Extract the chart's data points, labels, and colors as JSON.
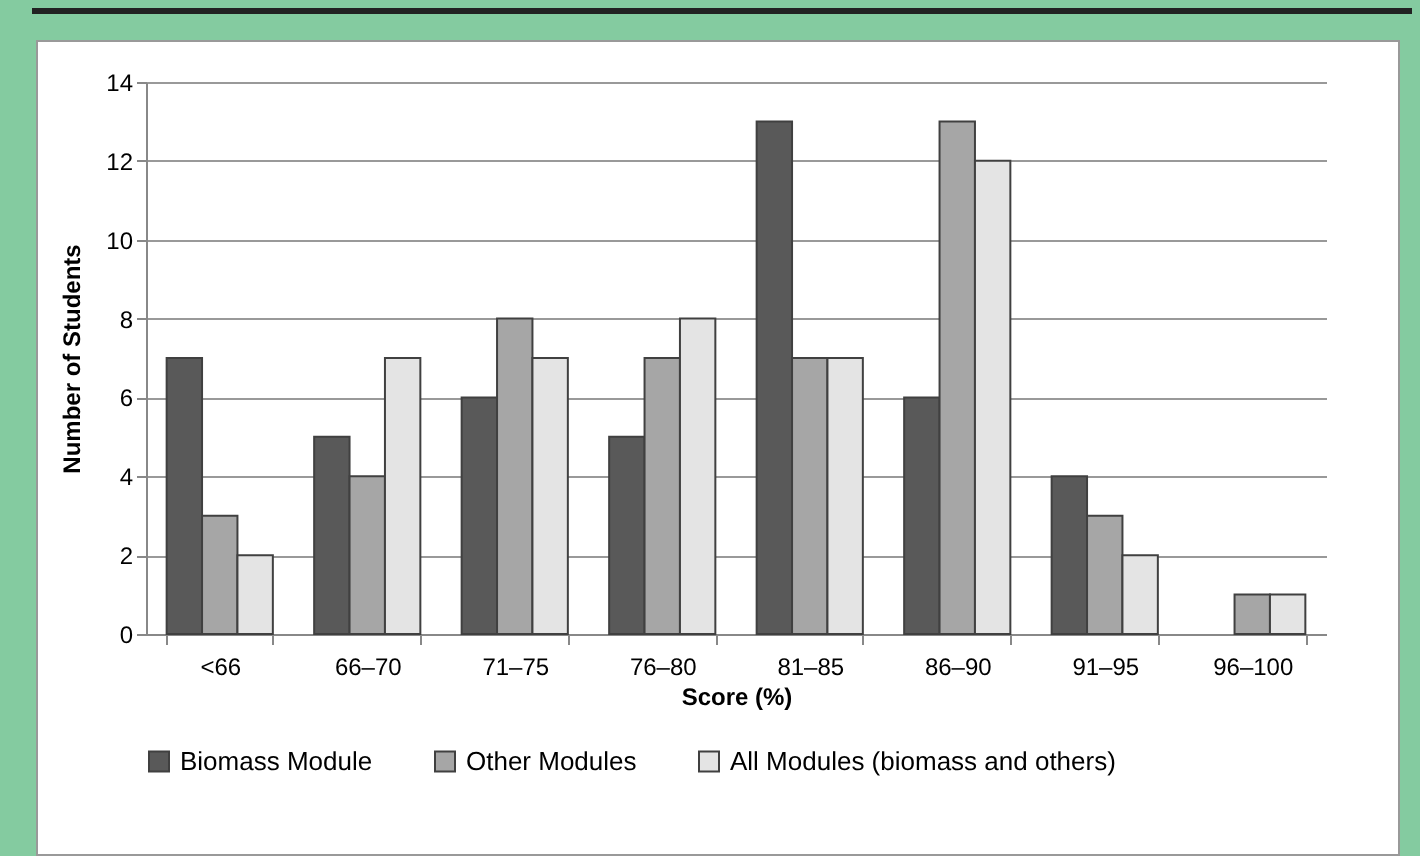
{
  "chart_data": {
    "type": "bar",
    "xlabel": "Score (%)",
    "ylabel": "Number of Students",
    "categories": [
      "<66",
      "66–70",
      "71–75",
      "76–80",
      "81–85",
      "86–90",
      "91–95",
      "96–100"
    ],
    "series": [
      {
        "name": "Biomass Module",
        "color": "#595959",
        "values": [
          7,
          5,
          6,
          5,
          13,
          6,
          4,
          null
        ]
      },
      {
        "name": "Other Modules",
        "color": "#a6a6a6",
        "values": [
          3,
          4,
          8,
          7,
          7,
          13,
          3,
          1
        ]
      },
      {
        "name": "All Modules (biomass and others)",
        "color": "#e4e4e4",
        "values": [
          2,
          7,
          7,
          8,
          7,
          12,
          2,
          1
        ]
      }
    ],
    "ylim": [
      0,
      14
    ],
    "yticks": [
      0,
      2,
      4,
      6,
      8,
      10,
      12,
      14
    ],
    "grid": "y",
    "legend": "bottom"
  }
}
